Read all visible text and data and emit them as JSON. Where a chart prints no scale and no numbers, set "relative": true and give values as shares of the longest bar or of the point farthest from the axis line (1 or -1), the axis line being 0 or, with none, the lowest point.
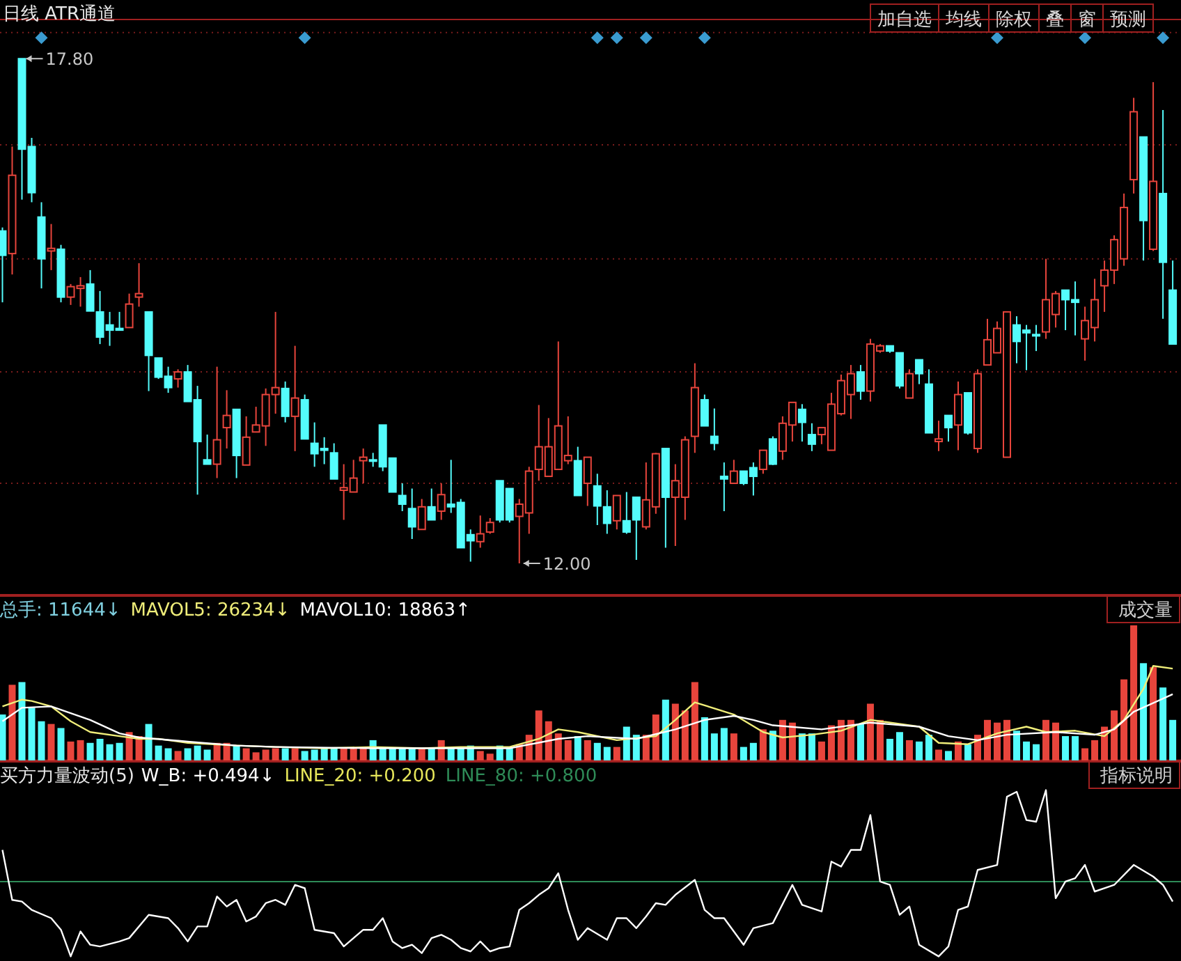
{
  "chart_data": [
    {
      "type": "candlestick",
      "title": "日线 ATR通道",
      "categories": [
        null,
        null,
        null,
        null,
        null,
        null,
        null,
        null,
        null,
        null,
        null,
        null,
        null,
        null,
        null,
        null,
        null,
        null,
        null,
        null,
        null,
        null,
        null,
        null,
        null,
        null,
        null,
        null,
        null,
        null,
        null,
        null,
        null,
        null,
        null,
        null,
        null,
        null,
        null,
        null,
        null,
        null,
        null,
        null,
        null,
        null,
        null,
        null,
        null,
        null,
        null,
        null,
        null,
        null,
        null,
        null,
        null,
        null,
        null,
        null,
        null,
        null,
        null,
        null,
        null,
        null,
        null,
        null,
        null,
        null,
        null,
        null,
        null,
        null,
        null,
        null,
        null,
        null,
        null,
        null,
        null,
        null,
        null,
        null,
        null,
        null,
        null,
        null,
        null,
        null,
        null,
        null,
        null,
        null,
        null,
        null,
        null,
        null,
        null,
        null,
        null,
        null,
        null,
        null,
        null,
        null,
        null,
        null,
        null,
        null,
        null,
        null,
        null,
        null,
        null,
        null,
        null,
        null,
        null,
        null,
        null
      ],
      "ohlc": [
        [
          15.82,
          15.86,
          15.0,
          15.54
        ],
        [
          15.56,
          16.79,
          15.32,
          16.46
        ],
        [
          17.8,
          17.8,
          16.18,
          16.76
        ],
        [
          16.79,
          16.89,
          16.15,
          16.26
        ],
        [
          15.98,
          16.15,
          15.16,
          15.5
        ],
        [
          15.59,
          15.9,
          15.37,
          15.62
        ],
        [
          15.61,
          15.66,
          15.0,
          15.06
        ],
        [
          15.06,
          15.21,
          14.97,
          15.18
        ],
        [
          15.16,
          15.29,
          14.95,
          15.19
        ],
        [
          15.21,
          15.37,
          14.9,
          14.9
        ],
        [
          14.89,
          15.13,
          14.52,
          14.6
        ],
        [
          14.74,
          14.89,
          14.5,
          14.68
        ],
        [
          14.7,
          14.89,
          14.68,
          14.68
        ],
        [
          14.71,
          15.1,
          14.71,
          14.98
        ],
        [
          15.06,
          15.45,
          14.95,
          15.1
        ],
        [
          14.89,
          14.89,
          13.98,
          14.39
        ],
        [
          14.36,
          14.36,
          14.12,
          14.14
        ],
        [
          14.15,
          14.26,
          13.96,
          14.02
        ],
        [
          14.12,
          14.23,
          14.02,
          14.2
        ],
        [
          14.2,
          14.28,
          13.86,
          13.86
        ],
        [
          13.88,
          14.04,
          12.79,
          13.4
        ],
        [
          13.19,
          13.48,
          13.14,
          13.14
        ],
        [
          13.14,
          14.26,
          12.98,
          13.42
        ],
        [
          13.56,
          13.99,
          13.32,
          13.7
        ],
        [
          13.77,
          13.77,
          12.98,
          13.24
        ],
        [
          13.13,
          13.69,
          13.13,
          13.45
        ],
        [
          13.51,
          13.8,
          13.51,
          13.59
        ],
        [
          13.58,
          14.01,
          13.35,
          13.94
        ],
        [
          13.94,
          14.89,
          13.72,
          14.02
        ],
        [
          14.01,
          14.09,
          13.62,
          13.69
        ],
        [
          13.69,
          14.5,
          13.29,
          13.9
        ],
        [
          13.88,
          13.94,
          13.43,
          13.43
        ],
        [
          13.38,
          13.62,
          13.11,
          13.26
        ],
        [
          13.32,
          13.45,
          13.14,
          13.3
        ],
        [
          13.27,
          13.38,
          12.97,
          12.97
        ],
        [
          12.84,
          13.14,
          12.5,
          12.87
        ],
        [
          12.82,
          13.19,
          12.82,
          12.98
        ],
        [
          13.18,
          13.32,
          12.92,
          13.22
        ],
        [
          13.19,
          13.27,
          13.11,
          13.18
        ],
        [
          13.59,
          13.59,
          13.06,
          13.11
        ],
        [
          13.21,
          13.21,
          12.82,
          12.82
        ],
        [
          12.78,
          12.92,
          12.6,
          12.68
        ],
        [
          12.63,
          12.86,
          12.28,
          12.42
        ],
        [
          12.39,
          12.74,
          12.39,
          12.65
        ],
        [
          12.65,
          12.86,
          12.5,
          12.5
        ],
        [
          12.6,
          12.92,
          12.5,
          12.79
        ],
        [
          12.68,
          13.19,
          12.58,
          12.65
        ],
        [
          12.7,
          12.74,
          12.18,
          12.18
        ],
        [
          12.33,
          12.39,
          12.02,
          12.26
        ],
        [
          12.25,
          12.55,
          12.18,
          12.34
        ],
        [
          12.36,
          12.52,
          12.34,
          12.47
        ],
        [
          12.95,
          12.95,
          12.47,
          12.5
        ],
        [
          12.86,
          12.86,
          12.47,
          12.5
        ],
        [
          12.54,
          12.74,
          12.0,
          12.68
        ],
        [
          12.58,
          13.11,
          12.34,
          13.06
        ],
        [
          13.08,
          13.82,
          12.95,
          13.34
        ],
        [
          13.0,
          13.67,
          13.0,
          13.34
        ],
        [
          13.08,
          14.55,
          13.08,
          13.58
        ],
        [
          13.18,
          13.69,
          13.14,
          13.24
        ],
        [
          13.18,
          13.34,
          12.78,
          12.78
        ],
        [
          12.92,
          13.22,
          12.66,
          13.22
        ],
        [
          12.89,
          13.03,
          12.44,
          12.66
        ],
        [
          12.65,
          12.84,
          12.34,
          12.46
        ],
        [
          12.49,
          12.78,
          12.39,
          12.78
        ],
        [
          12.49,
          12.82,
          12.34,
          12.36
        ],
        [
          12.76,
          12.76,
          12.04,
          12.5
        ],
        [
          12.42,
          13.16,
          12.39,
          12.73
        ],
        [
          12.65,
          13.27,
          12.57,
          13.26
        ],
        [
          13.32,
          13.32,
          12.18,
          12.76
        ],
        [
          12.76,
          13.14,
          12.2,
          12.95
        ],
        [
          12.76,
          13.46,
          12.5,
          13.42
        ],
        [
          13.46,
          14.3,
          13.27,
          14.02
        ],
        [
          13.88,
          13.94,
          13.58,
          13.58
        ],
        [
          13.46,
          13.78,
          13.3,
          13.38
        ],
        [
          13.0,
          13.16,
          12.6,
          12.97
        ],
        [
          12.92,
          13.19,
          12.92,
          13.06
        ],
        [
          13.06,
          13.06,
          12.9,
          12.92
        ],
        [
          13.1,
          13.16,
          12.78,
          13.0
        ],
        [
          13.08,
          13.3,
          13.03,
          13.3
        ],
        [
          13.43,
          13.46,
          13.13,
          13.14
        ],
        [
          13.29,
          13.69,
          13.19,
          13.61
        ],
        [
          13.59,
          13.85,
          13.4,
          13.85
        ],
        [
          13.77,
          13.83,
          13.4,
          13.62
        ],
        [
          13.48,
          13.61,
          13.29,
          13.37
        ],
        [
          13.48,
          13.56,
          13.37,
          13.56
        ],
        [
          13.3,
          13.96,
          13.3,
          13.83
        ],
        [
          13.72,
          14.17,
          13.7,
          14.1
        ],
        [
          13.94,
          14.28,
          13.66,
          14.18
        ],
        [
          14.2,
          14.28,
          13.88,
          13.98
        ],
        [
          13.98,
          14.58,
          13.86,
          14.52
        ],
        [
          14.44,
          14.52,
          14.42,
          14.5
        ],
        [
          14.5,
          14.5,
          14.42,
          14.44
        ],
        [
          14.42,
          14.42,
          14.01,
          14.04
        ],
        [
          13.9,
          14.23,
          13.9,
          14.18
        ],
        [
          14.34,
          14.34,
          14.06,
          14.18
        ],
        [
          14.06,
          14.23,
          13.5,
          13.5
        ],
        [
          13.4,
          13.64,
          13.29,
          13.43
        ],
        [
          13.7,
          13.7,
          13.4,
          13.56
        ],
        [
          13.59,
          14.09,
          13.3,
          13.94
        ],
        [
          13.96,
          13.96,
          13.48,
          13.5
        ],
        [
          13.32,
          14.23,
          13.27,
          14.18
        ],
        [
          14.28,
          14.81,
          14.28,
          14.57
        ],
        [
          14.42,
          14.78,
          14.42,
          14.7
        ],
        [
          13.22,
          14.89,
          13.22,
          14.89
        ],
        [
          14.74,
          14.84,
          14.3,
          14.55
        ],
        [
          14.68,
          14.74,
          14.22,
          14.65
        ],
        [
          14.63,
          14.74,
          14.44,
          14.62
        ],
        [
          14.66,
          15.5,
          14.58,
          15.03
        ],
        [
          14.86,
          15.13,
          14.71,
          15.1
        ],
        [
          15.14,
          15.14,
          14.68,
          15.03
        ],
        [
          15.03,
          15.24,
          14.62,
          15.0
        ],
        [
          14.58,
          14.95,
          14.33,
          14.79
        ],
        [
          14.71,
          15.27,
          14.55,
          15.03
        ],
        [
          15.19,
          15.48,
          14.89,
          15.37
        ],
        [
          15.37,
          15.77,
          15.21,
          15.72
        ],
        [
          15.5,
          16.25,
          15.42,
          16.09
        ],
        [
          16.41,
          17.35,
          16.25,
          17.19
        ],
        [
          16.9,
          16.9,
          15.48,
          15.94
        ],
        [
          15.61,
          17.53,
          15.59,
          16.39
        ],
        [
          16.25,
          17.21,
          14.81,
          15.46
        ],
        [
          15.14,
          15.48,
          14.52,
          14.52
        ]
      ],
      "colors": [
        "#54fcfc",
        "#e8453c",
        "#54fcfc",
        "#54fcfc",
        "#54fcfc",
        "#e8453c",
        "#54fcfc",
        "#e8453c",
        "#e8453c",
        "#54fcfc",
        "#54fcfc",
        "#54fcfc",
        "#54fcfc",
        "#e8453c",
        "#e8453c",
        "#54fcfc",
        "#54fcfc",
        "#54fcfc",
        "#e8453c",
        "#54fcfc",
        "#54fcfc",
        "#54fcfc",
        "#e8453c",
        "#e8453c",
        "#54fcfc",
        "#e8453c",
        "#e8453c",
        "#e8453c",
        "#e8453c",
        "#54fcfc",
        "#e8453c",
        "#54fcfc",
        "#54fcfc",
        "#54fcfc",
        "#54fcfc",
        "#e8453c",
        "#e8453c",
        "#e8453c",
        "#54fcfc",
        "#54fcfc",
        "#54fcfc",
        "#54fcfc",
        "#54fcfc",
        "#e8453c",
        "#54fcfc",
        "#e8453c",
        "#54fcfc",
        "#54fcfc",
        "#54fcfc",
        "#e8453c",
        "#e8453c",
        "#54fcfc",
        "#54fcfc",
        "#e8453c",
        "#e8453c",
        "#e8453c",
        "#e8453c",
        "#e8453c",
        "#e8453c",
        "#54fcfc",
        "#e8453c",
        "#54fcfc",
        "#54fcfc",
        "#e8453c",
        "#54fcfc",
        "#54fcfc",
        "#e8453c",
        "#e8453c",
        "#54fcfc",
        "#e8453c",
        "#e8453c",
        "#e8453c",
        "#54fcfc",
        "#54fcfc",
        "#54fcfc",
        "#e8453c",
        "#54fcfc",
        "#54fcfc",
        "#e8453c",
        "#54fcfc",
        "#e8453c",
        "#e8453c",
        "#54fcfc",
        "#54fcfc",
        "#e8453c",
        "#e8453c",
        "#e8453c",
        "#e8453c",
        "#54fcfc",
        "#e8453c",
        "#e8453c",
        "#54fcfc",
        "#54fcfc",
        "#e8453c",
        "#54fcfc",
        "#54fcfc",
        "#e8453c",
        "#54fcfc",
        "#e8453c",
        "#54fcfc",
        "#e8453c",
        "#e8453c",
        "#e8453c",
        "#e8453c",
        "#54fcfc",
        "#54fcfc",
        "#54fcfc",
        "#e8453c",
        "#e8453c",
        "#54fcfc",
        "#54fcfc",
        "#e8453c",
        "#e8453c",
        "#e8453c",
        "#e8453c",
        "#e8453c",
        "#e8453c",
        "#54fcfc",
        "#e8453c",
        "#54fcfc",
        "#54fcfc"
      ],
      "series": [
        {
          "type": "scatter",
          "marker": "diamond",
          "color": "#3a9bd0",
          "values": [
            null,
            null,
            null,
            null,
            18.04,
            null,
            null,
            null,
            null,
            null,
            null,
            null,
            null,
            null,
            null,
            null,
            null,
            null,
            null,
            null,
            null,
            null,
            null,
            null,
            null,
            null,
            null,
            null,
            null,
            null,
            null,
            18.04,
            null,
            null,
            null,
            null,
            null,
            null,
            null,
            null,
            null,
            null,
            null,
            null,
            null,
            null,
            null,
            null,
            null,
            null,
            null,
            null,
            null,
            null,
            null,
            null,
            null,
            null,
            null,
            null,
            null,
            18.04,
            null,
            18.04,
            null,
            null,
            18.04,
            null,
            null,
            null,
            null,
            null,
            18.04,
            null,
            null,
            null,
            null,
            null,
            null,
            null,
            null,
            null,
            null,
            null,
            null,
            null,
            null,
            null,
            null,
            null,
            null,
            null,
            null,
            null,
            null,
            null,
            null,
            null,
            null,
            null,
            null,
            null,
            18.04,
            null,
            null,
            null,
            null,
            null,
            null,
            null,
            null,
            18.04,
            null,
            null,
            null,
            null,
            null,
            null,
            null,
            18.04,
            null
          ]
        }
      ],
      "ylim": [
        11.64,
        18.25
      ],
      "yticks": [
        {
          "value": 12.92,
          "label": null
        },
        {
          "value": 14.2,
          "label": null
        },
        {
          "value": 15.5,
          "label": null
        },
        {
          "value": 16.81,
          "label": null
        },
        {
          "value": 18.1,
          "label": null
        }
      ],
      "grid": "y",
      "annotations": [
        "17.80",
        "12.00",
        "加自选",
        "均线",
        "除权",
        "叠",
        "窗",
        "预测"
      ]
    },
    {
      "type": "bar",
      "title": "成交量",
      "categories": [
        null,
        null,
        null,
        null,
        null,
        null,
        null,
        null,
        null,
        null,
        null,
        null,
        null,
        null,
        null,
        null,
        null,
        null,
        null,
        null,
        null,
        null,
        null,
        null,
        null,
        null,
        null,
        null,
        null,
        null,
        null,
        null,
        null,
        null,
        null,
        null,
        null,
        null,
        null,
        null,
        null,
        null,
        null,
        null,
        null,
        null,
        null,
        null,
        null,
        null,
        null,
        null,
        null,
        null,
        null,
        null,
        null,
        null,
        null,
        null,
        null,
        null,
        null,
        null,
        null,
        null,
        null,
        null,
        null,
        null,
        null,
        null,
        null,
        null,
        null,
        null,
        null,
        null,
        null,
        null,
        null,
        null,
        null,
        null,
        null,
        null,
        null,
        null,
        null,
        null,
        null,
        null,
        null,
        null,
        null,
        null,
        null,
        null,
        null,
        null,
        null,
        null,
        null,
        null,
        null,
        null,
        null,
        null,
        null,
        null,
        null,
        null,
        null,
        null,
        null,
        null,
        null,
        null,
        null,
        null,
        null
      ],
      "series": [
        {
          "colors": [
            "#54fcfc",
            "#e8453c",
            "#54fcfc",
            "#54fcfc",
            "#54fcfc",
            "#e8453c",
            "#54fcfc",
            "#e8453c",
            "#e8453c",
            "#54fcfc",
            "#54fcfc",
            "#54fcfc",
            "#54fcfc",
            "#e8453c",
            "#e8453c",
            "#54fcfc",
            "#54fcfc",
            "#54fcfc",
            "#e8453c",
            "#54fcfc",
            "#54fcfc",
            "#54fcfc",
            "#e8453c",
            "#e8453c",
            "#54fcfc",
            "#e8453c",
            "#e8453c",
            "#e8453c",
            "#e8453c",
            "#54fcfc",
            "#e8453c",
            "#54fcfc",
            "#54fcfc",
            "#54fcfc",
            "#54fcfc",
            "#e8453c",
            "#e8453c",
            "#e8453c",
            "#54fcfc",
            "#54fcfc",
            "#54fcfc",
            "#54fcfc",
            "#54fcfc",
            "#e8453c",
            "#54fcfc",
            "#e8453c",
            "#54fcfc",
            "#54fcfc",
            "#54fcfc",
            "#e8453c",
            "#e8453c",
            "#54fcfc",
            "#54fcfc",
            "#e8453c",
            "#e8453c",
            "#e8453c",
            "#e8453c",
            "#e8453c",
            "#e8453c",
            "#54fcfc",
            "#e8453c",
            "#54fcfc",
            "#54fcfc",
            "#e8453c",
            "#54fcfc",
            "#54fcfc",
            "#e8453c",
            "#e8453c",
            "#54fcfc",
            "#e8453c",
            "#e8453c",
            "#e8453c",
            "#54fcfc",
            "#54fcfc",
            "#54fcfc",
            "#e8453c",
            "#54fcfc",
            "#54fcfc",
            "#e8453c",
            "#54fcfc",
            "#e8453c",
            "#e8453c",
            "#54fcfc",
            "#54fcfc",
            "#e8453c",
            "#e8453c",
            "#e8453c",
            "#e8453c",
            "#54fcfc",
            "#e8453c",
            "#e8453c",
            "#54fcfc",
            "#54fcfc",
            "#e8453c",
            "#54fcfc",
            "#54fcfc",
            "#e8453c",
            "#54fcfc",
            "#e8453c",
            "#54fcfc",
            "#e8453c",
            "#e8453c",
            "#e8453c",
            "#e8453c",
            "#54fcfc",
            "#54fcfc",
            "#54fcfc",
            "#e8453c",
            "#e8453c",
            "#54fcfc",
            "#54fcfc",
            "#e8453c",
            "#e8453c",
            "#e8453c",
            "#e8453c",
            "#e8453c",
            "#e8453c",
            "#54fcfc",
            "#e8453c",
            "#54fcfc",
            "#54fcfc"
          ],
          "values": [
            0.34,
            0.56,
            0.58,
            0.39,
            0.29,
            0.27,
            0.24,
            0.14,
            0.15,
            0.13,
            0.16,
            0.12,
            0.13,
            0.21,
            0.18,
            0.27,
            0.11,
            0.09,
            0.07,
            0.09,
            0.11,
            0.08,
            0.13,
            0.13,
            0.11,
            0.09,
            0.06,
            0.08,
            0.09,
            0.09,
            0.09,
            0.07,
            0.08,
            0.09,
            0.09,
            0.09,
            0.09,
            0.09,
            0.15,
            0.1,
            0.09,
            0.09,
            0.09,
            0.09,
            0.09,
            0.15,
            0.09,
            0.09,
            0.11,
            0.07,
            0.05,
            0.11,
            0.09,
            0.12,
            0.19,
            0.37,
            0.29,
            0.2,
            0.15,
            0.18,
            0.15,
            0.13,
            0.1,
            0.1,
            0.25,
            0.19,
            0.19,
            0.34,
            0.45,
            0.42,
            0.37,
            0.58,
            0.32,
            0.2,
            0.24,
            0.2,
            0.1,
            0.13,
            0.23,
            0.22,
            0.3,
            0.28,
            0.2,
            0.2,
            0.14,
            0.26,
            0.3,
            0.3,
            0.27,
            0.42,
            0.3,
            0.16,
            0.21,
            0.15,
            0.14,
            0.19,
            0.08,
            0.07,
            0.14,
            0.12,
            0.19,
            0.3,
            0.28,
            0.3,
            0.22,
            0.14,
            0.12,
            0.3,
            0.28,
            0.18,
            0.18,
            0.09,
            0.15,
            0.25,
            0.37,
            0.6,
            1,
            0.72,
            0.69,
            0.54,
            0.3
          ]
        },
        {
          "type": "line",
          "color": "#f0ee7a",
          "values": [
            0.4,
            null,
            0.45,
            0.44,
            null,
            0.4,
            null,
            0.29,
            null,
            0.21,
            null,
            null,
            0.18,
            null,
            0.16,
            null,
            0.16,
            null,
            null,
            0.13,
            null,
            null,
            null,
            null,
            0.11,
            null,
            null,
            null,
            0.1,
            null,
            null,
            null,
            null,
            0.09,
            null,
            null,
            null,
            null,
            0.1,
            null,
            null,
            null,
            null,
            0.09,
            null,
            null,
            null,
            0.1,
            null,
            null,
            null,
            null,
            0.1,
            null,
            null,
            0.16,
            null,
            0.23,
            null,
            0.21,
            null,
            null,
            null,
            0.15,
            null,
            null,
            null,
            0.18,
            null,
            0.3,
            null,
            0.43,
            null,
            null,
            null,
            0.34,
            null,
            null,
            0.21,
            null,
            0.17,
            null,
            null,
            0.19,
            null,
            null,
            0.22,
            null,
            null,
            0.3,
            null,
            null,
            null,
            null,
            0.25,
            null,
            0.13,
            null,
            null,
            0.12,
            null,
            null,
            0.2,
            null,
            null,
            0.25,
            null,
            0.21,
            null,
            null,
            0.22,
            null,
            null,
            0.18,
            null,
            0.3,
            null,
            0.53,
            0.7,
            null,
            0.68
          ]
        },
        {
          "type": "line",
          "color": "#ffffff",
          "values": [
            0.29,
            null,
            0.39,
            null,
            null,
            0.4,
            null,
            0.35,
            null,
            0.3,
            null,
            null,
            0.2,
            null,
            0.17,
            null,
            null,
            null,
            null,
            0.14,
            null,
            null,
            null,
            null,
            0.11,
            null,
            null,
            null,
            0.1,
            null,
            null,
            null,
            null,
            null,
            null,
            null,
            null,
            null,
            0.09,
            null,
            null,
            null,
            null,
            null,
            null,
            null,
            null,
            0.09,
            null,
            null,
            null,
            null,
            0.09,
            null,
            null,
            null,
            null,
            0.16,
            null,
            null,
            0.18,
            null,
            null,
            null,
            null,
            0.16,
            null,
            null,
            null,
            0.23,
            null,
            null,
            0.3,
            null,
            null,
            0.33,
            null,
            0.3,
            null,
            0.26,
            null,
            null,
            null,
            null,
            0.23,
            null,
            null,
            null,
            null,
            0.28,
            null,
            null,
            null,
            null,
            0.25,
            null,
            null,
            0.18,
            null,
            null,
            0.15,
            null,
            null,
            0.19,
            null,
            null,
            null,
            null,
            0.21,
            null,
            null,
            null,
            0.19,
            null,
            0.23,
            null,
            0.36,
            null,
            null,
            null,
            0.49
          ]
        }
      ],
      "relative": true,
      "annotations": [
        "总手: 11644↓",
        "MAVOL5: 26234↓",
        "MAVOL10: 18863↑"
      ]
    },
    {
      "type": "line",
      "title": "买方力量波动(5)",
      "subtitle": "指标说明",
      "categories": [
        null,
        null,
        null,
        null,
        null,
        null,
        null,
        null,
        null,
        null,
        null,
        null,
        null,
        null,
        null,
        null,
        null,
        null,
        null,
        null,
        null,
        null,
        null,
        null,
        null,
        null,
        null,
        null,
        null,
        null,
        null,
        null,
        null,
        null,
        null,
        null,
        null,
        null,
        null,
        null,
        null,
        null,
        null,
        null,
        null,
        null,
        null,
        null,
        null,
        null,
        null,
        null,
        null,
        null,
        null,
        null,
        null,
        null,
        null,
        null,
        null,
        null,
        null,
        null,
        null,
        null,
        null,
        null,
        null,
        null,
        null,
        null,
        null,
        null,
        null,
        null,
        null,
        null,
        null,
        null,
        null,
        null,
        null,
        null,
        null,
        null,
        null,
        null,
        null,
        null,
        null,
        null,
        null,
        null,
        null,
        null,
        null,
        null,
        null,
        null,
        null,
        null,
        null,
        null,
        null,
        null,
        null,
        null,
        null,
        null,
        null,
        null,
        null,
        null,
        null,
        null,
        null,
        null,
        null,
        null,
        null
      ],
      "series": [
        {
          "color": "#ffffff",
          "values": [
            0.64,
            0.34,
            0.33,
            0.28,
            null,
            0.23,
            0.16,
            0,
            0.15,
            0.07,
            0.06,
            null,
            0.09,
            0.11,
            null,
            0.25,
            null,
            0.23,
            0.17,
            0.09,
            0.18,
            0.18,
            0.36,
            0.3,
            0.34,
            0.21,
            0.24,
            0.32,
            0.34,
            0.31,
            0.43,
            0.41,
            0.16,
            null,
            0.14,
            0.06,
            0.11,
            0.16,
            0.16,
            0.23,
            0.09,
            0.05,
            0.07,
            0.02,
            0.11,
            0.13,
            0.1,
            0.05,
            0.03,
            0.09,
            0.03,
            0.05,
            0.06,
            0.28,
            0.32,
            0.37,
            0.41,
            0.5,
            0.28,
            0.1,
            0.17,
            null,
            0.1,
            0.23,
            0.23,
            0.17,
            0.24,
            0.32,
            0.31,
            0.37,
            null,
            0.46,
            0.28,
            0.23,
            0.23,
            null,
            0.07,
            0.17,
            null,
            0.2,
            null,
            0.43,
            0.31,
            null,
            0.27,
            0.57,
            0.54,
            0.64,
            0.64,
            0.85,
            0.45,
            0.43,
            0.25,
            0.3,
            0.07,
            null,
            0,
            0.06,
            0.28,
            0.3,
            0.52,
            null,
            0.55,
            0.96,
            0.99,
            0.82,
            0.81,
            1,
            0.35,
            0.45,
            0.47,
            0.55,
            0.39,
            null,
            0.43,
            null,
            0.55,
            null,
            0.48,
            0.43,
            0.33
          ]
        }
      ],
      "relative": true,
      "ref_lines": [
        {
          "axis": "y",
          "value": 0.45,
          "color": "#2e8b57"
        }
      ],
      "annotations": [
        "W_B: +0.494↓",
        "LINE_20: +0.200",
        "LINE_80: +0.800"
      ]
    }
  ]
}
